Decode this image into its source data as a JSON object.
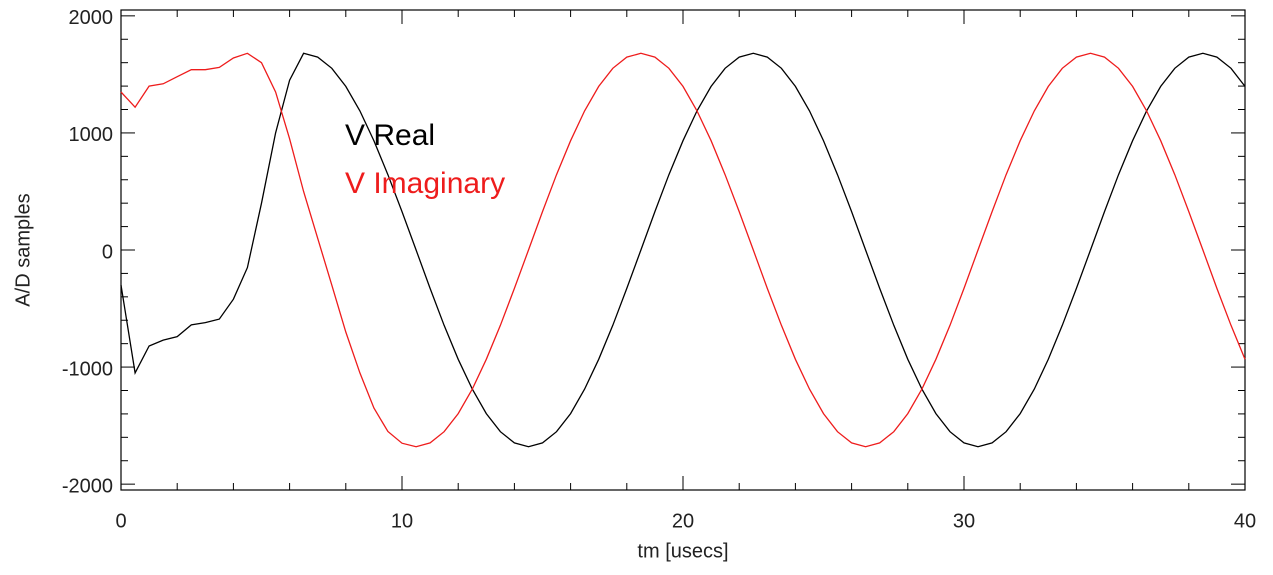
{
  "chart_data": {
    "type": "line",
    "xlabel": "tm [usecs]",
    "ylabel": "A/D samples",
    "xlim": [
      0,
      40
    ],
    "ylim": [
      -2050,
      2050
    ],
    "xticks": [
      0,
      10,
      20,
      30,
      40
    ],
    "yticks": [
      -2000,
      -1000,
      0,
      1000,
      2000
    ],
    "x": [
      0,
      0.5,
      1,
      1.5,
      2,
      2.5,
      3,
      3.5,
      4,
      4.5,
      5,
      5.5,
      6,
      6.5,
      7,
      7.5,
      8,
      8.5,
      9,
      9.5,
      10,
      10.5,
      11,
      11.5,
      12,
      12.5,
      13,
      13.5,
      14,
      14.5,
      15,
      15.5,
      16,
      16.5,
      17,
      17.5,
      18,
      18.5,
      19,
      19.5,
      20,
      20.5,
      21,
      21.5,
      22,
      22.5,
      23,
      23.5,
      24,
      24.5,
      25,
      25.5,
      26,
      26.5,
      27,
      27.5,
      28,
      28.5,
      29,
      29.5,
      30,
      30.5,
      31,
      31.5,
      32,
      32.5,
      33,
      33.5,
      34,
      34.5,
      35,
      35.5,
      36,
      36.5,
      37,
      37.5,
      38,
      38.5,
      39,
      39.5,
      40
    ],
    "series": [
      {
        "name": "V Real",
        "color": "#000000",
        "values": [
          -300,
          -1050,
          -820,
          -770,
          -740,
          -640,
          -620,
          -590,
          -420,
          -150,
          400,
          1000,
          1450,
          1680,
          1648,
          1552,
          1397,
          1188,
          934,
          643,
          328,
          0,
          -328,
          -643,
          -934,
          -1188,
          -1397,
          -1552,
          -1648,
          -1680,
          -1648,
          -1552,
          -1397,
          -1188,
          -934,
          -643,
          -328,
          0,
          328,
          643,
          934,
          1188,
          1397,
          1552,
          1648,
          1680,
          1648,
          1552,
          1397,
          1188,
          934,
          643,
          328,
          0,
          -328,
          -643,
          -934,
          -1188,
          -1397,
          -1552,
          -1648,
          -1680,
          -1648,
          -1552,
          -1397,
          -1188,
          -934,
          -643,
          -328,
          0,
          328,
          643,
          934,
          1188,
          1397,
          1552,
          1648,
          1680,
          1648,
          1552,
          1397
        ]
      },
      {
        "name": "V Imaginary",
        "color": "#ee1c1c",
        "values": [
          1350,
          1220,
          1400,
          1420,
          1480,
          1540,
          1540,
          1560,
          1640,
          1680,
          1600,
          1350,
          950,
          500,
          100,
          -300,
          -700,
          -1050,
          -1350,
          -1550,
          -1650,
          -1680,
          -1648,
          -1552,
          -1397,
          -1188,
          -934,
          -643,
          -328,
          0,
          328,
          643,
          934,
          1188,
          1397,
          1552,
          1648,
          1680,
          1648,
          1552,
          1397,
          1188,
          934,
          643,
          328,
          0,
          -328,
          -643,
          -934,
          -1188,
          -1397,
          -1552,
          -1648,
          -1680,
          -1648,
          -1552,
          -1397,
          -1188,
          -934,
          -643,
          -328,
          0,
          328,
          643,
          934,
          1188,
          1397,
          1552,
          1648,
          1680,
          1648,
          1552,
          1397,
          1188,
          934,
          643,
          328,
          0,
          -328,
          -643,
          -934
        ]
      }
    ]
  }
}
